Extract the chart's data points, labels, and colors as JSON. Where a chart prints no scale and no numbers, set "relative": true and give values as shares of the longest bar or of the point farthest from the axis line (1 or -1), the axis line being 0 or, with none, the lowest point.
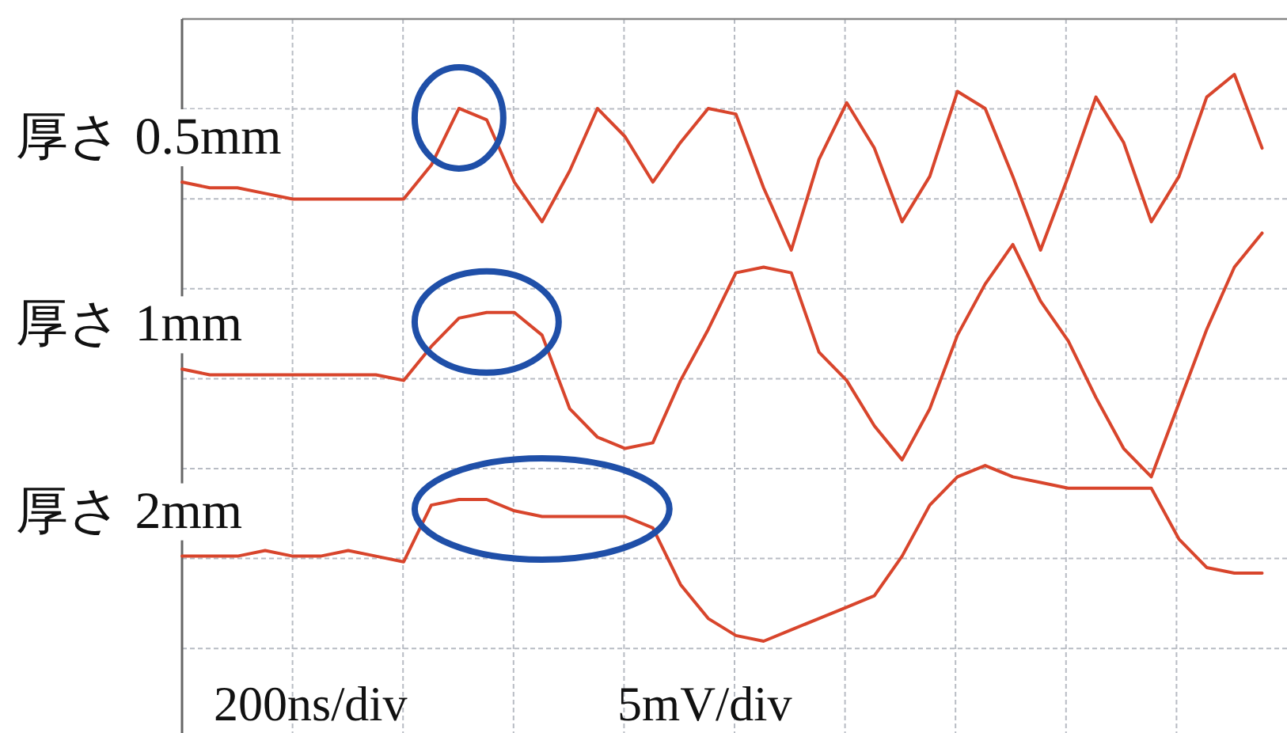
{
  "chart_data": {
    "type": "line",
    "relative": true,
    "grid": true,
    "marker": "none",
    "line_style": "solid",
    "categories": [
      null,
      null,
      null,
      null,
      null,
      null,
      null,
      null,
      null,
      null,
      null,
      null,
      null,
      null,
      null,
      null,
      null,
      null,
      null,
      null,
      null,
      null,
      null,
      null,
      null,
      null,
      null,
      null,
      null,
      null,
      null,
      null,
      null,
      null,
      null,
      null,
      null,
      null,
      null,
      null
    ],
    "series": [
      {
        "name": "厚さ 0.5mm",
        "color": "#d8452c",
        "values": [
          0.81,
          0.8,
          0.8,
          0.79,
          0.78,
          0.78,
          0.78,
          0.78,
          0.78,
          0.84,
          0.94,
          0.92,
          0.81,
          0.74,
          0.83,
          0.94,
          0.89,
          0.81,
          0.88,
          0.94,
          0.93,
          0.8,
          0.69,
          0.85,
          0.95,
          0.87,
          0.74,
          0.82,
          0.97,
          0.94,
          0.82,
          0.69,
          0.82,
          0.96,
          0.88,
          0.74,
          0.82,
          0.96,
          1.0,
          0.87
        ]
      },
      {
        "name": "厚さ 1mm",
        "color": "#d8452c",
        "values": [
          0.48,
          0.47,
          0.47,
          0.47,
          0.47,
          0.47,
          0.47,
          0.47,
          0.46,
          0.52,
          0.57,
          0.58,
          0.58,
          0.54,
          0.41,
          0.36,
          0.34,
          0.35,
          0.46,
          0.55,
          0.65,
          0.66,
          0.65,
          0.51,
          0.46,
          0.38,
          0.32,
          0.41,
          0.54,
          0.63,
          0.7,
          0.6,
          0.53,
          0.43,
          0.34,
          0.29,
          0.42,
          0.55,
          0.66,
          0.72
        ]
      },
      {
        "name": "厚さ 2mm",
        "color": "#d8452c",
        "values": [
          0.15,
          0.15,
          0.15,
          0.16,
          0.15,
          0.15,
          0.16,
          0.15,
          0.14,
          0.24,
          0.25,
          0.25,
          0.23,
          0.22,
          0.22,
          0.22,
          0.22,
          0.2,
          0.1,
          0.04,
          0.01,
          0.0,
          0.02,
          0.04,
          0.06,
          0.08,
          0.15,
          0.24,
          0.29,
          0.31,
          0.29,
          0.28,
          0.27,
          0.27,
          0.27,
          0.27,
          0.18,
          0.13,
          0.12,
          0.12
        ]
      }
    ],
    "annotations": [
      "200ns/div",
      "5mV/div"
    ]
  }
}
